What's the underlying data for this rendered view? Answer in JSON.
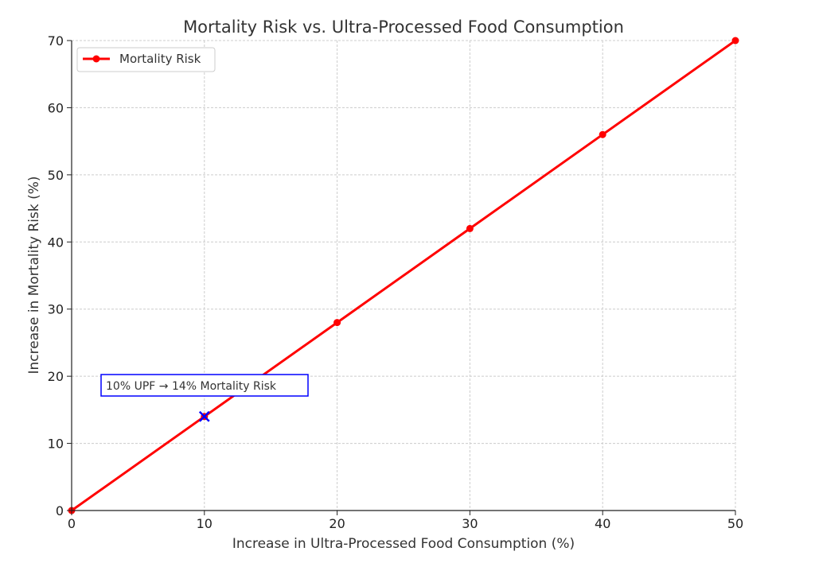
{
  "chart_data": {
    "type": "line",
    "title": "Mortality Risk vs. Ultra-Processed Food Consumption",
    "xlabel": "Increase in Ultra-Processed Food Consumption (%)",
    "ylabel": "Increase in Mortality Risk (%)",
    "xlim": [
      0,
      50
    ],
    "ylim": [
      0,
      70
    ],
    "xticks": [
      0,
      10,
      20,
      30,
      40,
      50
    ],
    "yticks": [
      0,
      10,
      20,
      30,
      40,
      50,
      60,
      70
    ],
    "grid": true,
    "legend_position": "top-left",
    "series": [
      {
        "name": "Mortality Risk",
        "color": "#ff0000",
        "marker": "circle",
        "x": [
          0,
          10,
          20,
          30,
          40,
          50
        ],
        "y": [
          0,
          14,
          28,
          42,
          56,
          70
        ]
      }
    ],
    "annotations": [
      {
        "text": "10% UPF → 14% Mortality Risk",
        "point": [
          10,
          14
        ],
        "marker": "x",
        "marker_color": "#0000ff",
        "box_color": "#0000ff"
      }
    ]
  }
}
